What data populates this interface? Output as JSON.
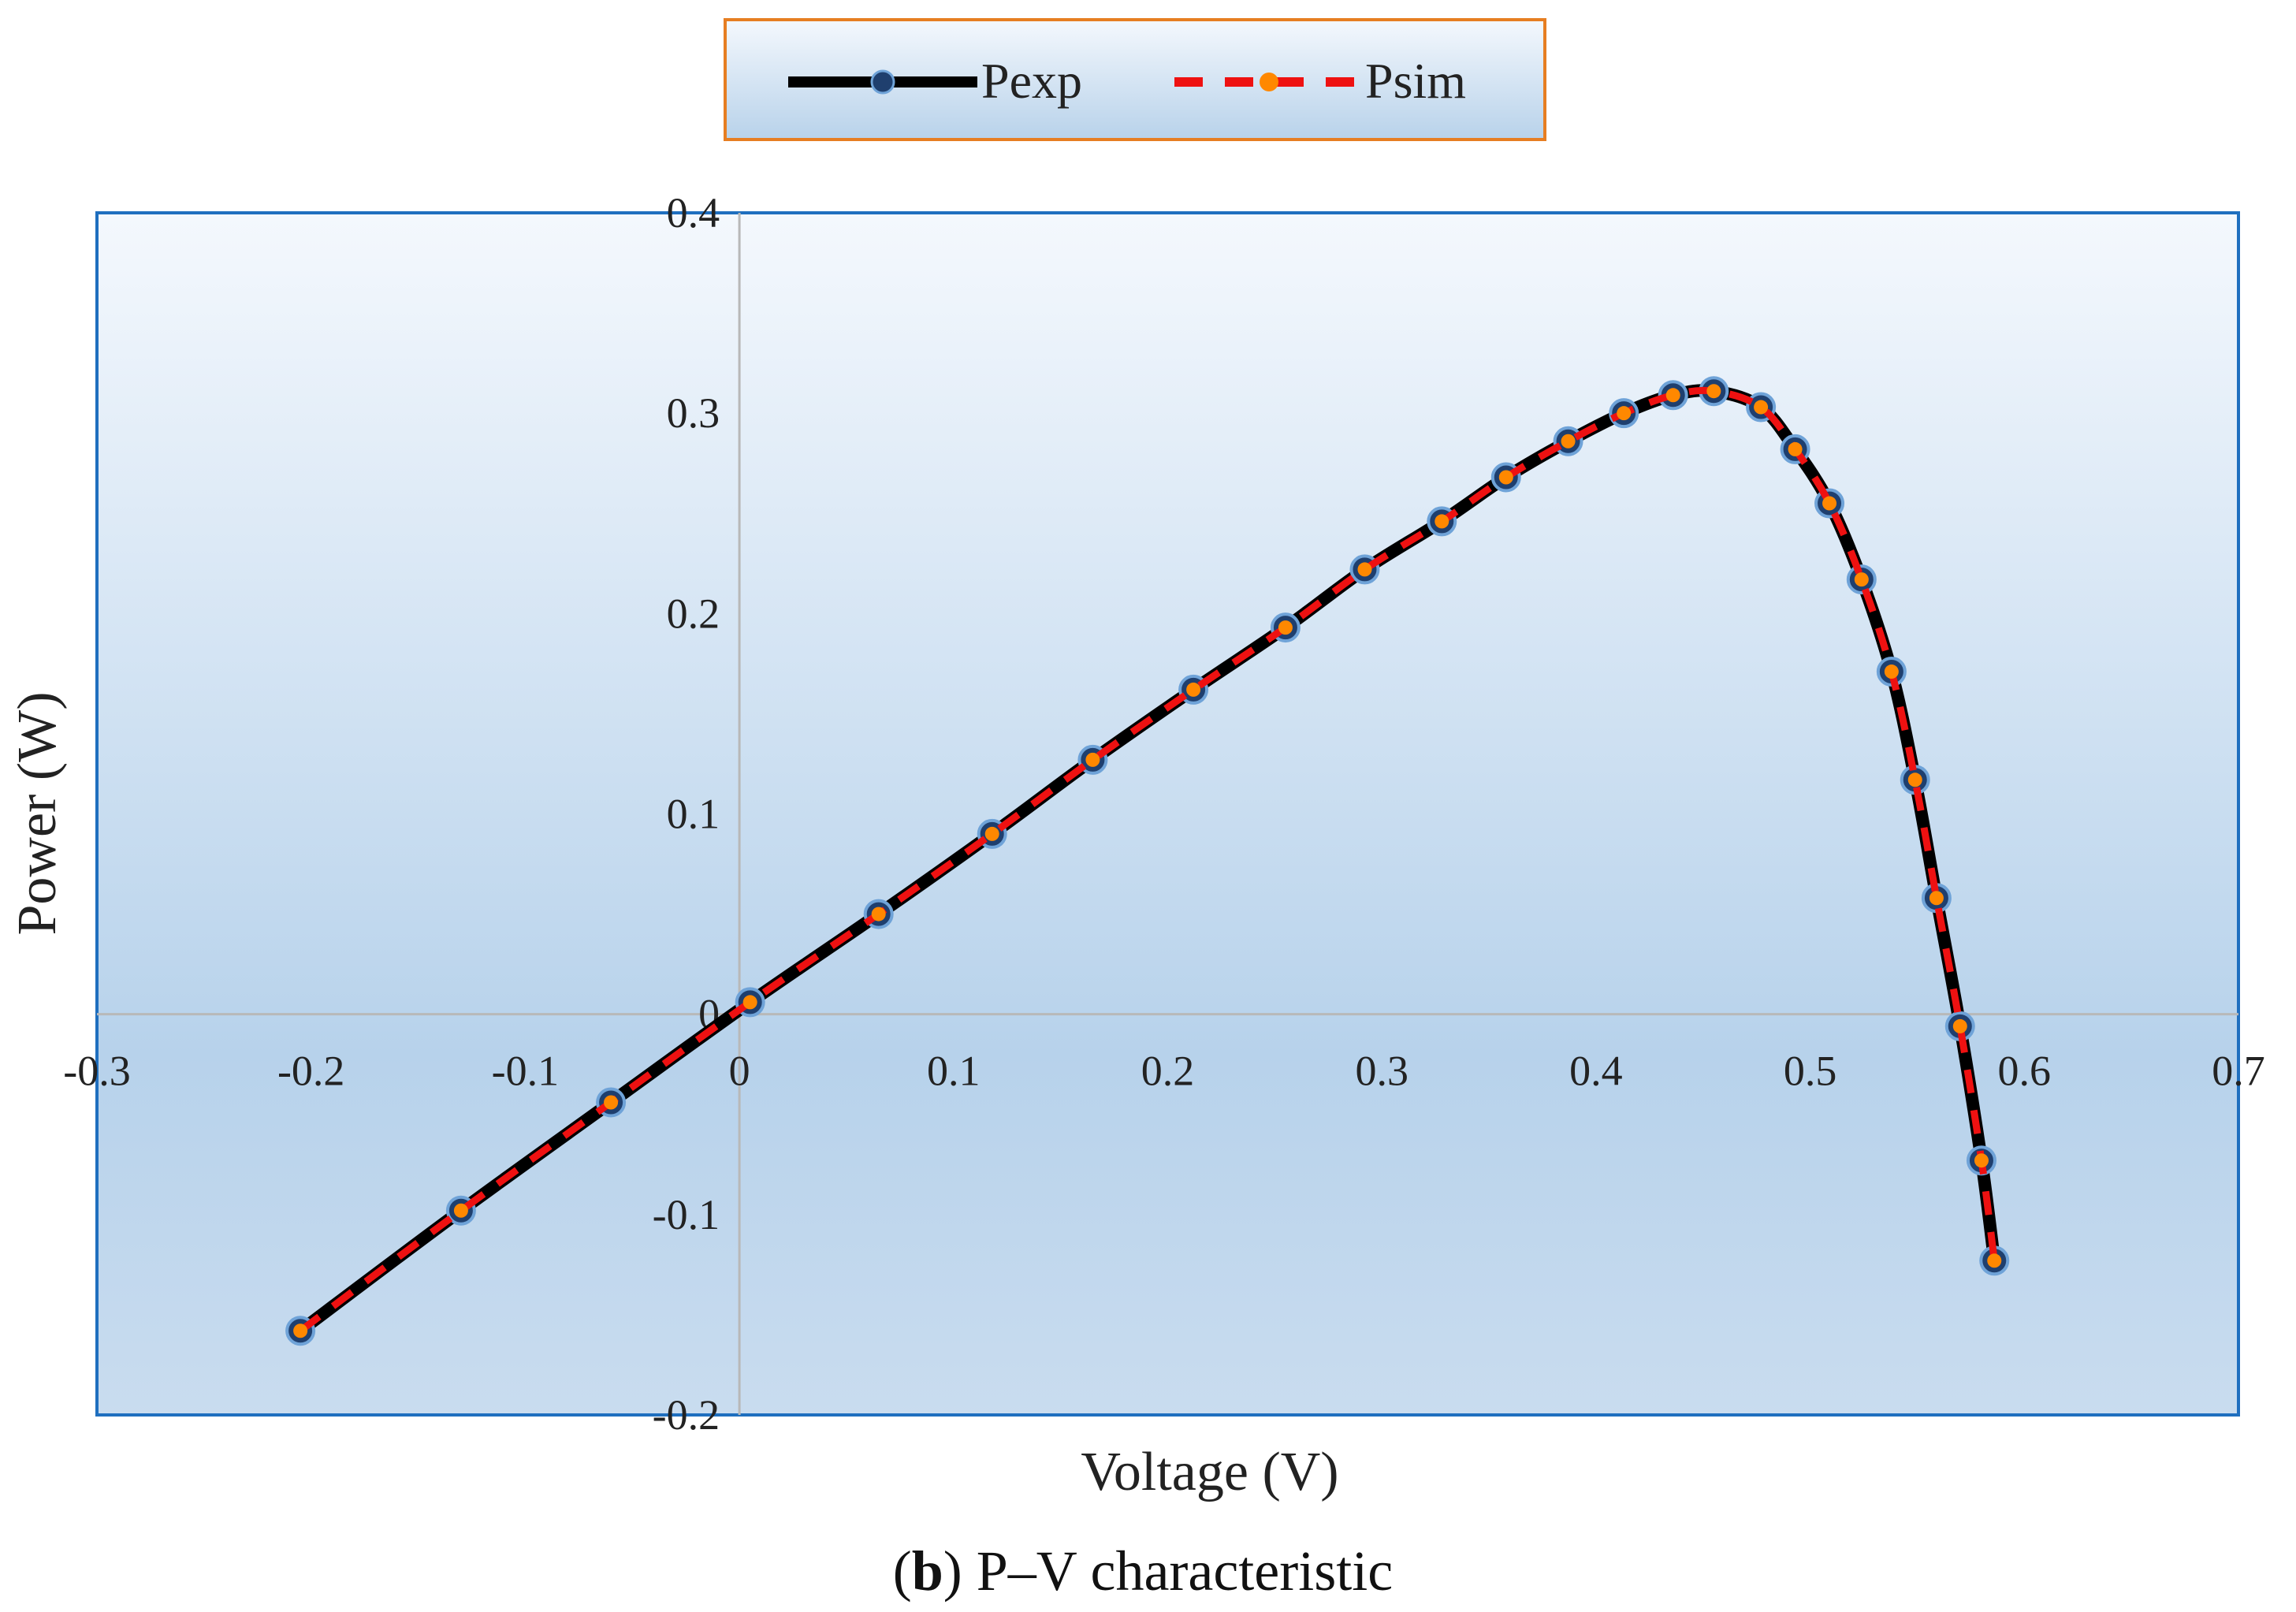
{
  "chart_data": {
    "type": "line",
    "title": "",
    "xlabel": "Voltage (V)",
    "ylabel": "Power (W)",
    "xlim": [
      -0.3,
      0.7
    ],
    "ylim": [
      -0.2,
      0.4
    ],
    "x_ticks": [
      "-0.3",
      "-0.2",
      "-0.1",
      "0",
      "0.1",
      "0.2",
      "0.3",
      "0.4",
      "0.5",
      "0.6",
      "0.7"
    ],
    "y_ticks": [
      "0.4",
      "0.3",
      "0.2",
      "0.1",
      "0",
      "-0.1",
      "-0.2"
    ],
    "x_tick_values": [
      -0.3,
      -0.2,
      -0.1,
      0,
      0.1,
      0.2,
      0.3,
      0.4,
      0.5,
      0.6,
      0.7
    ],
    "y_tick_values": [
      0.4,
      0.3,
      0.2,
      0.1,
      0,
      -0.1,
      -0.2
    ],
    "grid": false,
    "legend_position": "top-center",
    "series": [
      {
        "name": "Pexp",
        "color": "#000000",
        "marker_color": "#1f3f6e",
        "x": [
          -0.205,
          -0.13,
          -0.06,
          0.005,
          0.065,
          0.118,
          0.165,
          0.212,
          0.255,
          0.292,
          0.328,
          0.358,
          0.387,
          0.413,
          0.436,
          0.455,
          0.477,
          0.493,
          0.509,
          0.524,
          0.538,
          0.549,
          0.559,
          0.57,
          0.58,
          0.586
        ],
        "y": [
          -0.158,
          -0.098,
          -0.044,
          0.006,
          0.05,
          0.09,
          0.127,
          0.162,
          0.193,
          0.222,
          0.246,
          0.268,
          0.286,
          0.3,
          0.309,
          0.311,
          0.303,
          0.282,
          0.255,
          0.217,
          0.171,
          0.117,
          0.058,
          -0.006,
          -0.073,
          -0.123
        ]
      },
      {
        "name": "Psim",
        "color": "#ee1111",
        "marker_color": "#ff8800",
        "x": [
          -0.205,
          -0.13,
          -0.06,
          0.005,
          0.065,
          0.118,
          0.165,
          0.212,
          0.255,
          0.292,
          0.328,
          0.358,
          0.387,
          0.413,
          0.436,
          0.455,
          0.477,
          0.493,
          0.509,
          0.524,
          0.538,
          0.549,
          0.559,
          0.57,
          0.58,
          0.586
        ],
        "y": [
          -0.158,
          -0.098,
          -0.044,
          0.006,
          0.05,
          0.09,
          0.127,
          0.162,
          0.193,
          0.222,
          0.246,
          0.268,
          0.286,
          0.3,
          0.309,
          0.311,
          0.303,
          0.282,
          0.255,
          0.217,
          0.171,
          0.117,
          0.058,
          -0.006,
          -0.073,
          -0.123
        ]
      }
    ]
  },
  "caption": {
    "bold_part": "b",
    "rest": ") P–V characteristic",
    "open": "("
  },
  "colors": {
    "plot_border": "#1f6fbf",
    "legend_border": "#e67e22",
    "axis_line": "#b8b8b8",
    "bg_top": "#f4f8fd",
    "bg_bottom": "#b3cfe9"
  }
}
